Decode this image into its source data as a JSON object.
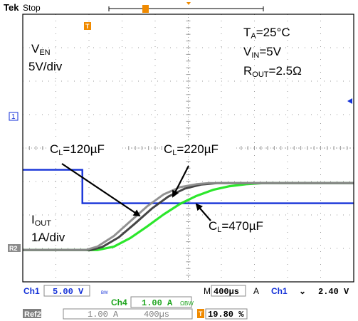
{
  "chart_data": {
    "type": "line",
    "title": "",
    "xlabel": "",
    "ylabel": "",
    "x_unit": "s",
    "xlim": [
      0,
      0.004
    ],
    "grid": true,
    "scope_status": "Stop",
    "brand": "Tek",
    "conditions": {
      "ta": {
        "prefix": "T",
        "sub": "A",
        "value": "=25°C"
      },
      "vin": {
        "prefix": "V",
        "sub": "IN",
        "value": "=5V"
      },
      "rout": {
        "prefix": "R",
        "sub": "OUT",
        "value": "=2.5Ω"
      }
    },
    "channel_labels": {
      "ven": {
        "prefix": "V",
        "sub": "EN",
        "scale": "5V/div"
      },
      "iout": {
        "prefix": "I",
        "sub": "OUT",
        "scale": "1A/div"
      }
    },
    "enable_trace": {
      "name": "",
      "color": "#1532d8",
      "unit": "V",
      "volts_per_div": 5,
      "high_v": 5,
      "low_v": 0,
      "fall_time_s": 0.00072
    },
    "series": [
      {
        "name": "",
        "label": {
          "prefix": "C",
          "sub": "L",
          "value": "=120µF"
        },
        "color": "#8c8c8c",
        "unit": "A",
        "amps_per_div": 1,
        "final_a": 2.0,
        "t_start_s": 0.00076,
        "t_end_s": 0.00225,
        "points": [
          [
            0,
            0
          ],
          [
            0.00076,
            0
          ],
          [
            0.0009,
            0.1
          ],
          [
            0.0011,
            0.42
          ],
          [
            0.0013,
            0.86
          ],
          [
            0.0015,
            1.3
          ],
          [
            0.0017,
            1.66
          ],
          [
            0.0019,
            1.88
          ],
          [
            0.0021,
            1.97
          ],
          [
            0.00225,
            2.0
          ],
          [
            0.004,
            2.0
          ]
        ]
      },
      {
        "name": "",
        "label": {
          "prefix": "C",
          "sub": "L",
          "value": "=220µF"
        },
        "color": "#3c3c3c",
        "unit": "A",
        "amps_per_div": 1,
        "final_a": 2.0,
        "t_start_s": 0.00082,
        "t_end_s": 0.00235,
        "points": [
          [
            0,
            0
          ],
          [
            0.00082,
            0
          ],
          [
            0.00096,
            0.09
          ],
          [
            0.00116,
            0.38
          ],
          [
            0.00136,
            0.8
          ],
          [
            0.00156,
            1.24
          ],
          [
            0.00176,
            1.6
          ],
          [
            0.00196,
            1.84
          ],
          [
            0.00216,
            1.96
          ],
          [
            0.00235,
            2.0
          ],
          [
            0.004,
            2.0
          ]
        ]
      },
      {
        "name": "",
        "label": {
          "prefix": "C",
          "sub": "L",
          "value": "=470µF"
        },
        "color": "#21e621",
        "unit": "A",
        "amps_per_div": 1,
        "final_a": 2.0,
        "t_start_s": 0.0009,
        "t_end_s": 0.0029,
        "points": [
          [
            0,
            0
          ],
          [
            0.0009,
            0
          ],
          [
            0.0011,
            0.1
          ],
          [
            0.0013,
            0.36
          ],
          [
            0.0015,
            0.7
          ],
          [
            0.0017,
            1.06
          ],
          [
            0.0019,
            1.38
          ],
          [
            0.0021,
            1.62
          ],
          [
            0.0023,
            1.8
          ],
          [
            0.0025,
            1.91
          ],
          [
            0.0027,
            1.97
          ],
          [
            0.0029,
            2.0
          ],
          [
            0.004,
            2.0
          ]
        ]
      }
    ],
    "readouts": {
      "ch1": {
        "name": "Ch1",
        "scale": "5.00 V",
        "coupling": "BW"
      },
      "ch4": {
        "name": "Ch4",
        "scale": "1.00 A",
        "coupling": "ΩBW"
      },
      "timebase": {
        "prefix": "M",
        "value": "400µs"
      },
      "trigger": {
        "prefix": "A",
        "source": "Ch1",
        "slope": "⌄",
        "level": "2.40 V"
      },
      "ref2": {
        "name": "Ref2",
        "scale": "1.00 A",
        "time": "400µs"
      },
      "trigger_position": "19.80 %"
    },
    "markers": {
      "ch1": "1",
      "ref": "R2",
      "trigger_glyph": "T"
    },
    "colors": {
      "graticule": "#9a9a9a",
      "frame": "#000000",
      "readout_blue": "#1532d8",
      "readout_green": "#1fa51f",
      "trigger_orange": "#f08a00",
      "ref_badge": "#808080"
    }
  }
}
